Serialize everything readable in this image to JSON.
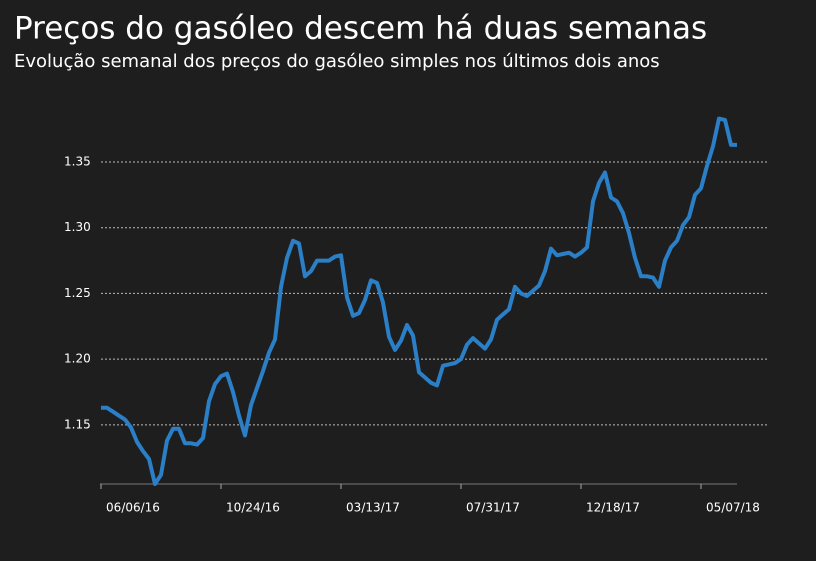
{
  "chart_data": {
    "type": "line",
    "title": "Preços do gasóleo descem há duas semanas",
    "subtitle": "Evolução semanal dos preços do gasóleo simples nos últimos dois anos",
    "categories": [
      "06/06/16",
      null,
      null,
      null,
      null,
      null,
      null,
      null,
      null,
      null,
      null,
      null,
      null,
      null,
      null,
      null,
      null,
      null,
      null,
      null,
      "10/24/16",
      null,
      null,
      null,
      null,
      null,
      null,
      null,
      null,
      null,
      null,
      null,
      null,
      null,
      null,
      null,
      null,
      null,
      null,
      null,
      "03/13/17",
      null,
      null,
      null,
      null,
      null,
      null,
      null,
      null,
      null,
      null,
      null,
      null,
      null,
      null,
      null,
      null,
      null,
      null,
      null,
      "07/31/17",
      null,
      null,
      null,
      null,
      null,
      null,
      null,
      null,
      null,
      null,
      null,
      null,
      null,
      null,
      null,
      null,
      null,
      null,
      null,
      "12/18/17",
      null,
      null,
      null,
      null,
      null,
      null,
      null,
      null,
      null,
      null,
      null,
      null,
      null,
      null,
      null,
      null,
      null,
      null,
      null,
      "05/07/18",
      null,
      null,
      null,
      null,
      null,
      null
    ],
    "values": [
      1.163,
      1.163,
      1.16,
      1.157,
      1.154,
      1.148,
      1.137,
      1.13,
      1.124,
      1.105,
      1.112,
      1.138,
      1.147,
      1.147,
      1.136,
      1.136,
      1.135,
      1.14,
      1.168,
      1.181,
      1.187,
      1.189,
      1.175,
      1.157,
      1.142,
      1.165,
      1.178,
      1.191,
      1.205,
      1.215,
      1.255,
      1.277,
      1.29,
      1.288,
      1.263,
      1.267,
      1.275,
      1.275,
      1.275,
      1.278,
      1.279,
      1.247,
      1.233,
      1.235,
      1.245,
      1.26,
      1.258,
      1.243,
      1.217,
      1.207,
      1.214,
      1.226,
      1.218,
      1.19,
      1.186,
      1.182,
      1.18,
      1.195,
      1.196,
      1.197,
      1.2,
      1.211,
      1.216,
      1.212,
      1.208,
      1.215,
      1.23,
      1.234,
      1.238,
      1.255,
      1.25,
      1.248,
      1.252,
      1.256,
      1.267,
      1.284,
      1.279,
      1.28,
      1.281,
      1.278,
      1.281,
      1.285,
      1.32,
      1.334,
      1.342,
      1.323,
      1.32,
      1.311,
      1.296,
      1.277,
      1.263,
      1.263,
      1.262,
      1.255,
      1.275,
      1.285,
      1.29,
      1.302,
      1.308,
      1.325,
      1.33,
      1.347,
      1.362,
      1.383,
      1.382,
      1.363,
      1.363
    ],
    "color": "#2b7fc6",
    "ylim": [
      1.105,
      1.39
    ],
    "yticks": [
      1.15,
      {
        "value": 1.2,
        "label": "1.20"
      },
      1.25,
      {
        "value": 1.3,
        "label": "1.30"
      },
      1.35
    ],
    "grid": true
  }
}
